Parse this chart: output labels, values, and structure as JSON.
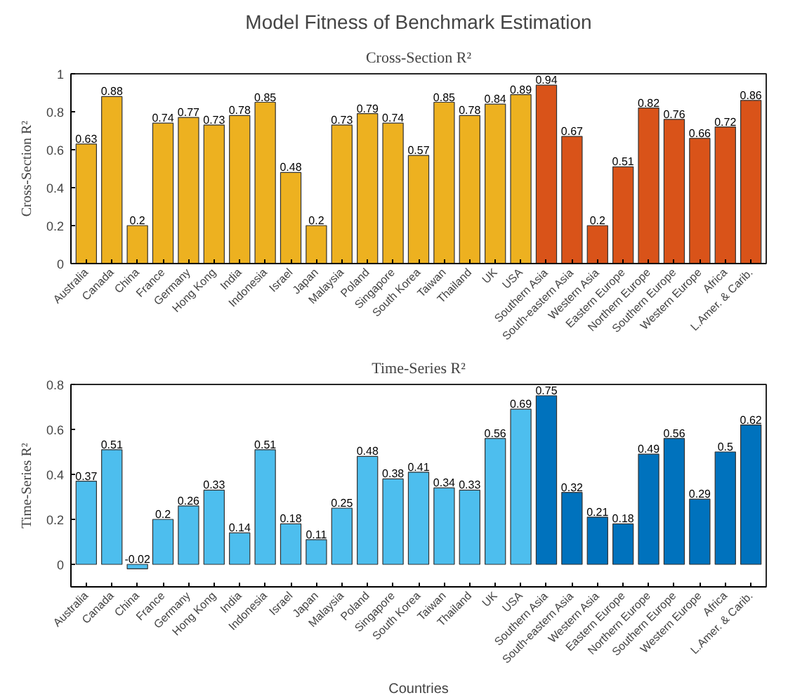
{
  "chart_data": [
    {
      "type": "bar",
      "title": "Model Fitness of Benchmark Estimation",
      "subtitle": "Cross-Section R²",
      "ylabel": "Cross-Section R²",
      "categories": [
        "Australia",
        "Canada",
        "China",
        "France",
        "Germany",
        "Hong Kong",
        "India",
        "Indonesia",
        "Israel",
        "Japan",
        "Malaysia",
        "Poland",
        "Singapore",
        "South Korea",
        "Taiwan",
        "Thailand",
        "UK",
        "USA",
        "Southern Asia",
        "South-eastern Asia",
        "Western Asia",
        "Eastern Europe",
        "Northern Europe",
        "Southern Europe",
        "Western Europe",
        "Africa",
        "L.Amer. & Carib."
      ],
      "values": [
        0.63,
        0.88,
        0.2,
        0.74,
        0.77,
        0.73,
        0.78,
        0.85,
        0.48,
        0.2,
        0.73,
        0.79,
        0.74,
        0.57,
        0.85,
        0.78,
        0.84,
        0.89,
        0.94,
        0.67,
        0.2,
        0.51,
        0.82,
        0.76,
        0.66,
        0.72,
        0.86
      ],
      "colors": [
        "#edb120",
        "#edb120",
        "#edb120",
        "#edb120",
        "#edb120",
        "#edb120",
        "#edb120",
        "#edb120",
        "#edb120",
        "#edb120",
        "#edb120",
        "#edb120",
        "#edb120",
        "#edb120",
        "#edb120",
        "#edb120",
        "#edb120",
        "#edb120",
        "#d95319",
        "#d95319",
        "#d95319",
        "#d95319",
        "#d95319",
        "#d95319",
        "#d95319",
        "#d95319",
        "#d95319"
      ],
      "ylim": [
        0,
        1
      ],
      "yticks": [
        0,
        0.2,
        0.4,
        0.6,
        0.8,
        1
      ],
      "data_labels": true
    },
    {
      "type": "bar",
      "subtitle": "Time-Series R²",
      "ylabel": "Time-Series R²",
      "xlabel": "Countries",
      "categories": [
        "Australia",
        "Canada",
        "China",
        "France",
        "Germany",
        "Hong Kong",
        "India",
        "Indonesia",
        "Israel",
        "Japan",
        "Malaysia",
        "Poland",
        "Singapore",
        "South Korea",
        "Taiwan",
        "Thailand",
        "UK",
        "USA",
        "Southern Asia",
        "South-eastern Asia",
        "Western Asia",
        "Eastern Europe",
        "Northern Europe",
        "Southern Europe",
        "Western Europe",
        "Africa",
        "L.Amer. & Carib."
      ],
      "values": [
        0.37,
        0.51,
        -0.02,
        0.2,
        0.26,
        0.33,
        0.14,
        0.51,
        0.18,
        0.11,
        0.25,
        0.48,
        0.38,
        0.41,
        0.34,
        0.33,
        0.56,
        0.69,
        0.75,
        0.32,
        0.21,
        0.18,
        0.49,
        0.56,
        0.29,
        0.5,
        0.62
      ],
      "colors": [
        "#4dbeee",
        "#4dbeee",
        "#4dbeee",
        "#4dbeee",
        "#4dbeee",
        "#4dbeee",
        "#4dbeee",
        "#4dbeee",
        "#4dbeee",
        "#4dbeee",
        "#4dbeee",
        "#4dbeee",
        "#4dbeee",
        "#4dbeee",
        "#4dbeee",
        "#4dbeee",
        "#4dbeee",
        "#4dbeee",
        "#0072bd",
        "#0072bd",
        "#0072bd",
        "#0072bd",
        "#0072bd",
        "#0072bd",
        "#0072bd",
        "#0072bd",
        "#0072bd"
      ],
      "ylim": [
        -0.1,
        0.8
      ],
      "yticks": [
        0,
        0.2,
        0.4,
        0.6,
        0.8
      ],
      "data_labels": true
    }
  ]
}
